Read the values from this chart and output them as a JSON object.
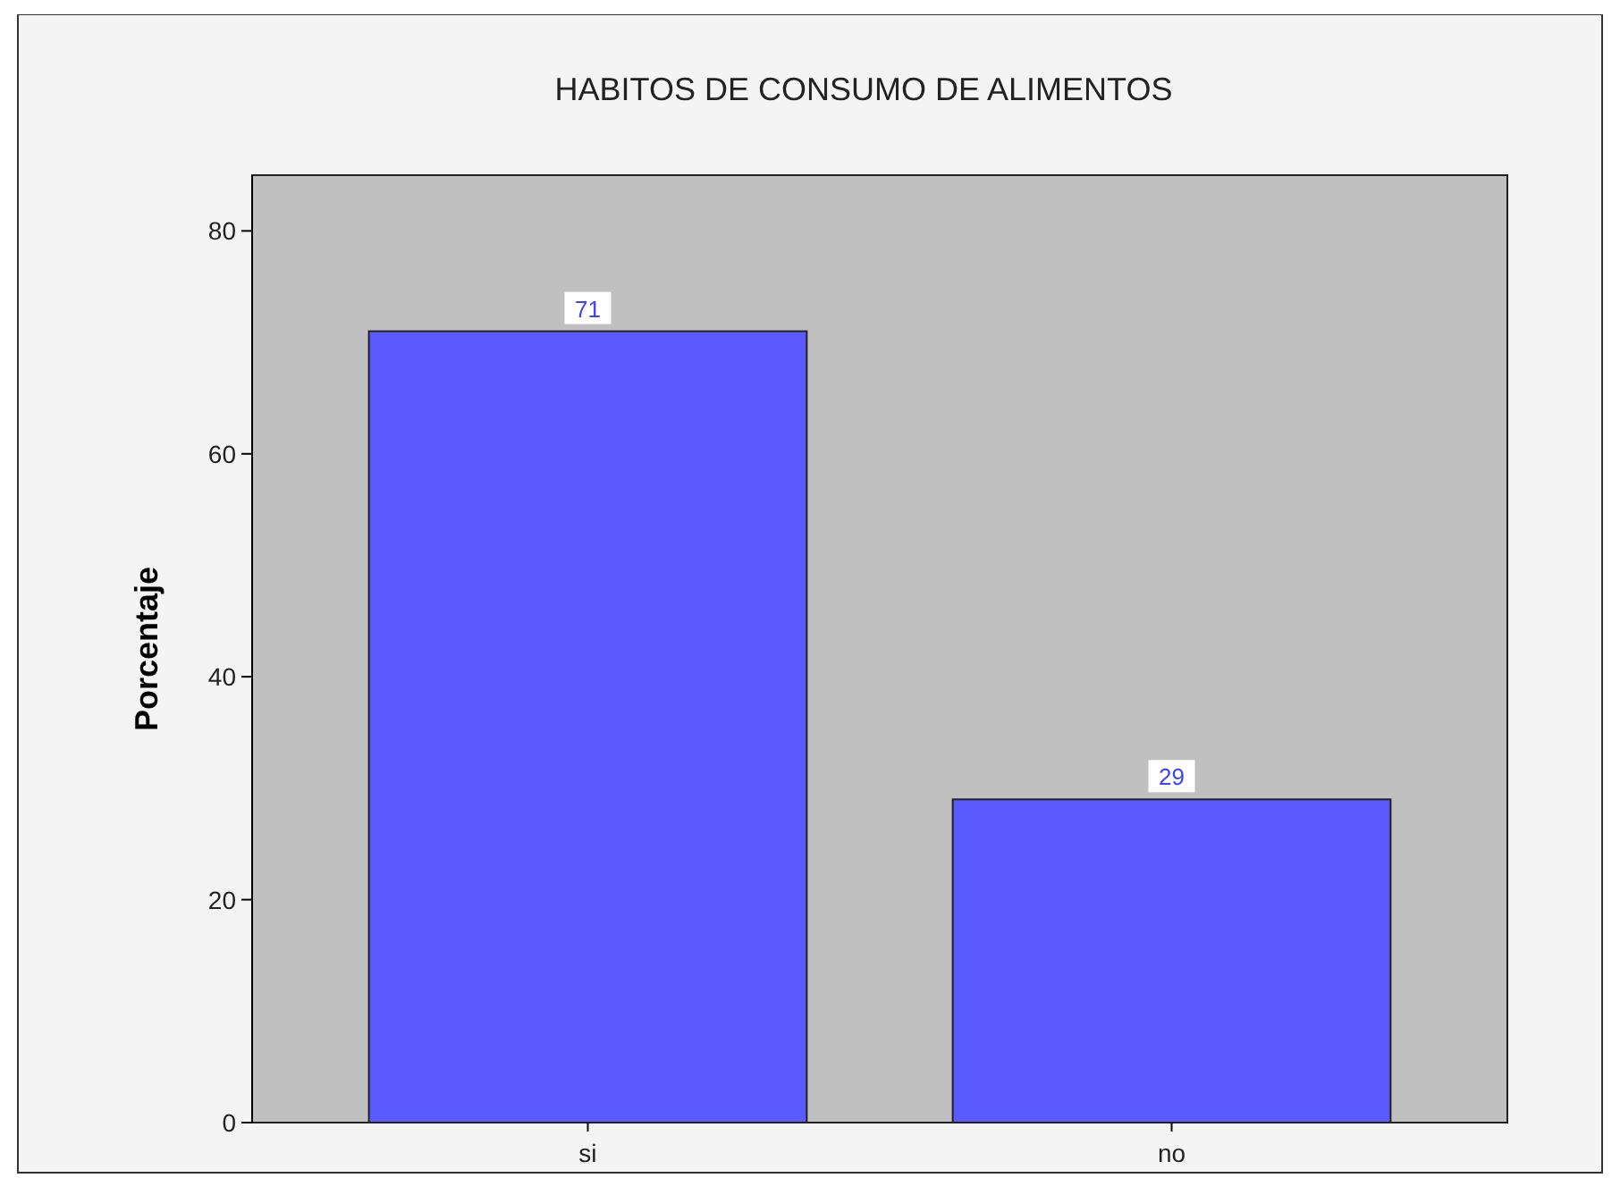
{
  "chart_data": {
    "type": "bar",
    "title": "HABITOS DE CONSUMO DE ALIMENTOS",
    "ylabel": "Porcentaje",
    "categories": [
      "si",
      "no"
    ],
    "values": [
      71,
      29
    ],
    "color": "#5a5aff",
    "ylim": [
      0,
      85
    ],
    "yticks": [
      0,
      20,
      40,
      60,
      80
    ],
    "data_labels": true,
    "grid": false
  }
}
